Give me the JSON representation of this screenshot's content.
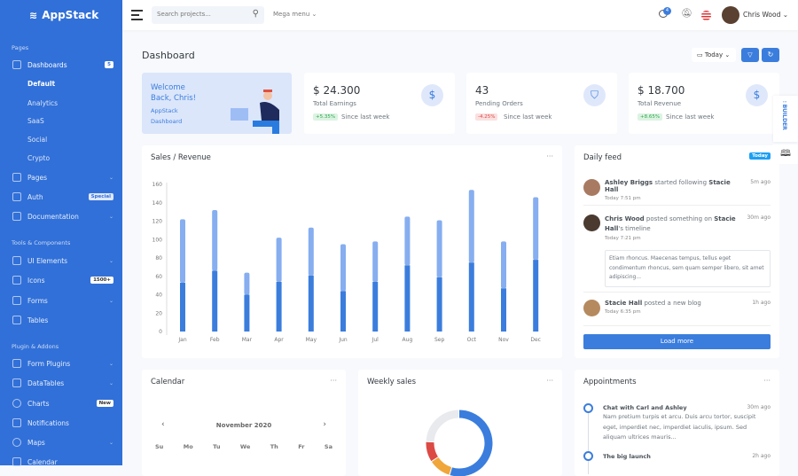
{
  "brand": {
    "name": "AppStack"
  },
  "sidebar": {
    "sections": [
      "Pages",
      "Tools & Components",
      "Plugin & Addons"
    ],
    "items": [
      {
        "label": "Dashboards",
        "badge": "5",
        "icon": "sliders-icon"
      },
      {
        "label": "Pages",
        "icon": "layout-icon"
      },
      {
        "label": "Auth",
        "badge": "Special",
        "icon": "users-icon"
      },
      {
        "label": "Documentation",
        "icon": "book-icon"
      },
      {
        "label": "UI Elements",
        "icon": "grid-icon"
      },
      {
        "label": "Icons",
        "badge": "1500+",
        "icon": "heart-icon"
      },
      {
        "label": "Forms",
        "icon": "check-square-icon"
      },
      {
        "label": "Tables",
        "icon": "list-icon"
      },
      {
        "label": "Form Plugins",
        "icon": "check-square-icon"
      },
      {
        "label": "DataTables",
        "icon": "list-icon"
      },
      {
        "label": "Charts",
        "badge": "New",
        "icon": "pie-chart-icon"
      },
      {
        "label": "Notifications",
        "icon": "bell-icon"
      },
      {
        "label": "Maps",
        "icon": "map-pin-icon"
      },
      {
        "label": "Calendar",
        "icon": "calendar-icon"
      }
    ],
    "subitems": [
      "Default",
      "Analytics",
      "SaaS",
      "Social",
      "Crypto"
    ]
  },
  "header": {
    "search_placeholder": "Search projects...",
    "mega_menu": "Mega menu",
    "messages_count": "4",
    "user_name": "Chris Wood"
  },
  "page": {
    "title": "Dashboard",
    "date_filter": "Today"
  },
  "welcome": {
    "line1": "Welcome",
    "line2": "Back, Chris!",
    "line3": "AppStack",
    "line4": "Dashboard"
  },
  "stats": [
    {
      "value": "$ 24.300",
      "label": "Total Earnings",
      "change": "+5.35%",
      "since": "Since last week",
      "icon": "dollar-icon",
      "trend": "up"
    },
    {
      "value": "43",
      "label": "Pending Orders",
      "change": "-4.25%",
      "since": "Since last week",
      "icon": "shopping-bag-icon",
      "trend": "down"
    },
    {
      "value": "$ 18.700",
      "label": "Total Revenue",
      "change": "+8.65%",
      "since": "Since last week",
      "icon": "dollar-icon",
      "trend": "up"
    }
  ],
  "sales": {
    "title": "Sales / Revenue"
  },
  "chart_data": [
    {
      "type": "bar",
      "stacked": true,
      "categories": [
        "Jan",
        "Feb",
        "Mar",
        "Apr",
        "May",
        "Jun",
        "Jul",
        "Aug",
        "Sep",
        "Oct",
        "Nov",
        "Dec"
      ],
      "series": [
        {
          "values": [
            53,
            66,
            40,
            54,
            61,
            44,
            54,
            72,
            59,
            75,
            47,
            78
          ],
          "color": "#3b7ddd"
        },
        {
          "values": [
            69,
            66,
            24,
            48,
            52,
            51,
            44,
            53,
            62,
            79,
            51,
            68
          ],
          "color": "#86aef0"
        }
      ],
      "ylim": [
        0,
        160
      ],
      "yticks": [
        0,
        20,
        40,
        60,
        80,
        100,
        120,
        140,
        160
      ],
      "grid": false
    },
    {
      "type": "pie",
      "donut": true,
      "values": [
        55,
        11,
        10,
        24
      ],
      "colors": [
        "#3b7ddd",
        "#f0a63b",
        "#dc4a44",
        "#e8eaed"
      ]
    }
  ],
  "feed": {
    "title": "Daily feed",
    "badge": "Today",
    "load_more": "Load more",
    "items": [
      {
        "actor": "Ashley Briggs",
        "action": " started following ",
        "target": "Stacie Hall",
        "time": "Today 7:51 pm",
        "ago": "5m ago"
      },
      {
        "actor": "Chris Wood",
        "action": " posted something on ",
        "target": "Stacie Hall",
        "suffix": "'s timeline",
        "time": "Today 7:21 pm",
        "ago": "30m ago",
        "quote": "Etiam rhoncus. Maecenas tempus, tellus eget condimentum rhoncus, sem quam semper libero, sit amet adipiscing..."
      },
      {
        "actor": "Stacie Hall",
        "action": " posted a new blog",
        "time": "Today 6:35 pm",
        "ago": "1h ago"
      }
    ]
  },
  "calendar": {
    "title": "Calendar",
    "month": "November 2020",
    "days": [
      "Su",
      "Mo",
      "Tu",
      "We",
      "Th",
      "Fr",
      "Sa"
    ]
  },
  "weekly": {
    "title": "Weekly sales"
  },
  "appointments": {
    "title": "Appointments",
    "items": [
      {
        "title": "Chat with Carl and Ashley",
        "ago": "30m ago",
        "text": "Nam pretium turpis et arcu. Duis arcu tortor, suscipit eget, imperdiet nec, imperdiet iaculis, ipsum. Sed aliquam ultrices mauris..."
      },
      {
        "title": "The big launch",
        "ago": "2h ago"
      }
    ]
  },
  "builder": {
    "label": "BUILDER"
  }
}
